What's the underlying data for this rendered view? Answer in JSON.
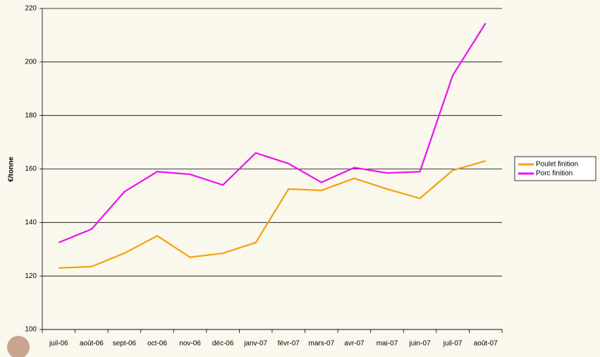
{
  "chart_data": {
    "type": "line",
    "y_label": "€/tonne",
    "categories": [
      "juil-06",
      "août-06",
      "sept-06",
      "oct-06",
      "nov-06",
      "déc-06",
      "janv-07",
      "févr-07",
      "mars-07",
      "avr-07",
      "mai-07",
      "juin-07",
      "juil-07",
      "août-07"
    ],
    "series": [
      {
        "name": "Poulet finition",
        "color": "#f5a10f",
        "values": [
          123,
          123.5,
          128.5,
          135,
          127,
          128.5,
          132.5,
          152.5,
          152,
          156.5,
          152.5,
          149,
          159.5,
          163
        ]
      },
      {
        "name": "Porc finition",
        "color": "#ee11ee",
        "values": [
          132.5,
          137.5,
          151.5,
          159,
          158,
          154,
          166,
          162,
          155,
          160.5,
          158.5,
          159,
          195,
          214.5
        ]
      }
    ],
    "ylim": [
      100,
      220
    ],
    "yticks": [
      100,
      120,
      140,
      160,
      180,
      200,
      220
    ],
    "grid": true,
    "legend": "right"
  }
}
